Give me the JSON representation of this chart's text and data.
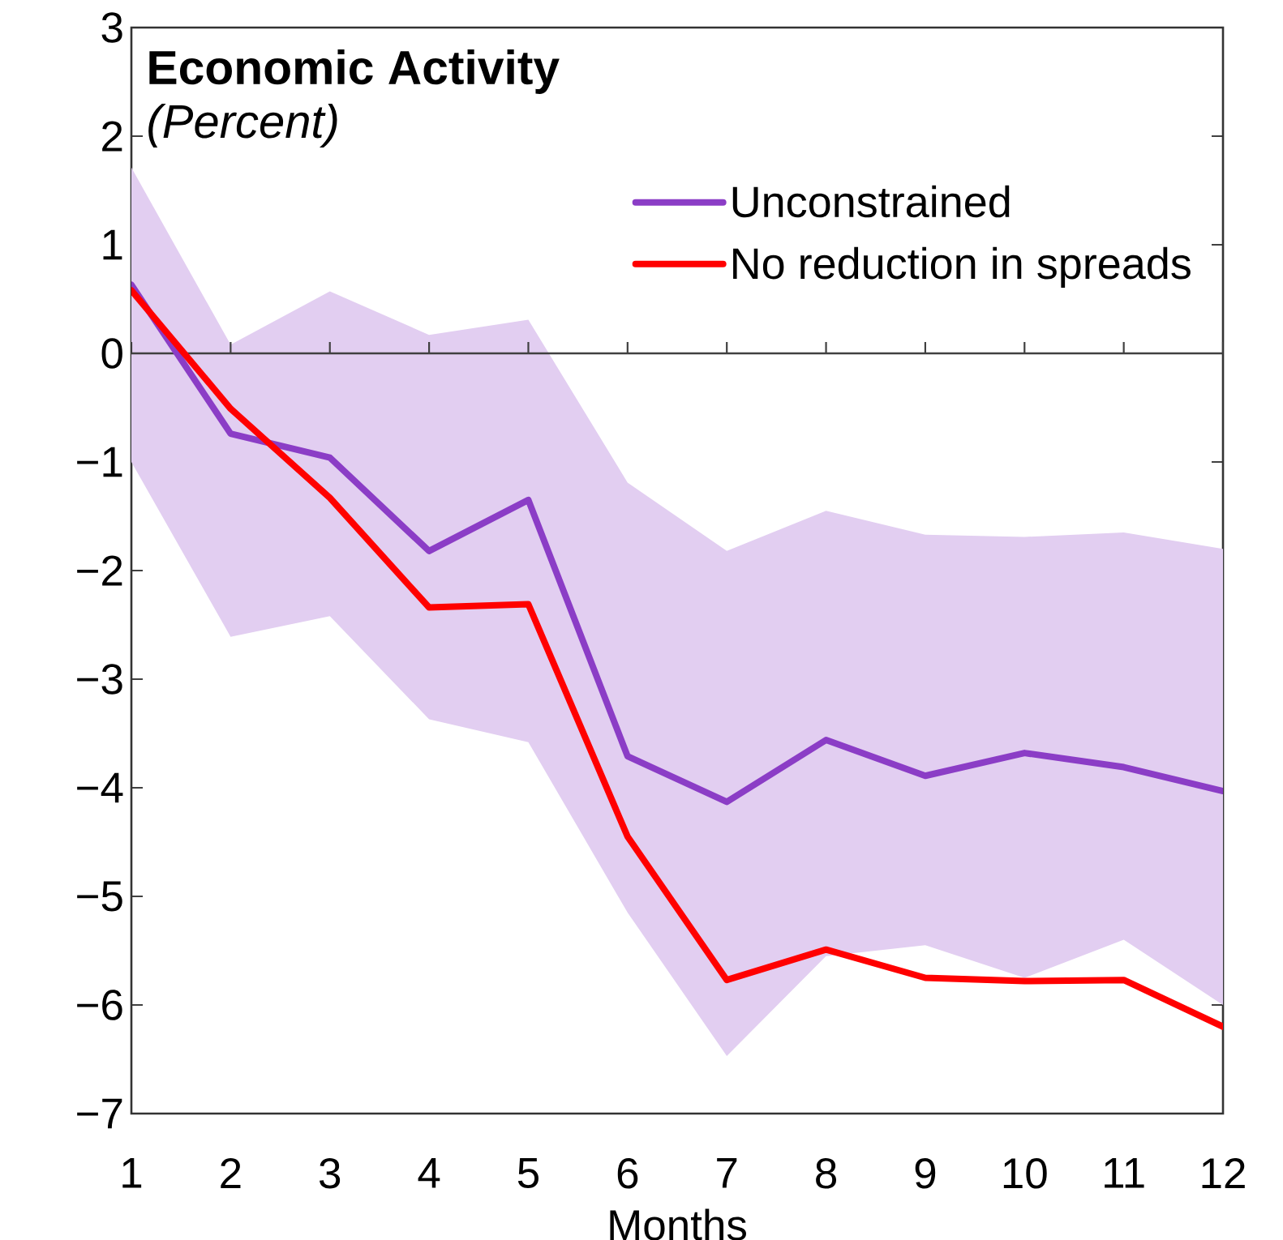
{
  "chart_data": {
    "type": "line",
    "title": "Economic Activity",
    "subtitle": "(Percent)",
    "xlabel": "Months",
    "x": [
      1,
      2,
      3,
      4,
      5,
      6,
      7,
      8,
      9,
      10,
      11,
      12
    ],
    "series": [
      {
        "name": "Unconstrained",
        "color": "#8b3dc6",
        "values": [
          0.63,
          -0.74,
          -0.96,
          -1.82,
          -1.35,
          -3.71,
          -4.13,
          -3.56,
          -3.89,
          -3.68,
          -3.81,
          -4.03
        ],
        "lower": [
          -1.0,
          -2.61,
          -2.42,
          -3.37,
          -3.58,
          -5.15,
          -6.47,
          -5.55,
          -5.45,
          -5.75,
          -5.4,
          -6.0
        ],
        "upper": [
          1.71,
          0.08,
          0.57,
          0.17,
          0.31,
          -1.19,
          -1.82,
          -1.45,
          -1.67,
          -1.69,
          -1.65,
          -1.8
        ]
      },
      {
        "name": "No reduction in spreads",
        "color": "#ff0000",
        "values": [
          0.58,
          -0.51,
          -1.33,
          -2.34,
          -2.31,
          -4.45,
          -5.77,
          -5.49,
          -5.75,
          -5.78,
          -5.77,
          -6.2
        ]
      }
    ],
    "xlim": [
      1,
      12
    ],
    "ylim": [
      -7,
      3
    ],
    "xticks": [
      1,
      2,
      3,
      4,
      5,
      6,
      7,
      8,
      9,
      10,
      11,
      12
    ],
    "yticks": [
      3,
      2,
      1,
      0,
      {
        "value": -1,
        "label": "−1"
      },
      {
        "value": -2,
        "label": "−2"
      },
      {
        "value": -3,
        "label": "−3"
      },
      {
        "value": -4,
        "label": "−4"
      },
      {
        "value": -5,
        "label": "−5"
      },
      {
        "value": -6,
        "label": "−6"
      },
      {
        "value": -7,
        "label": "−7"
      }
    ],
    "ref_lines": [
      {
        "axis": "y",
        "value": 0,
        "color": "#404040"
      }
    ],
    "legend": "top right",
    "grid": false,
    "marker": "none",
    "line_style": "solid"
  }
}
